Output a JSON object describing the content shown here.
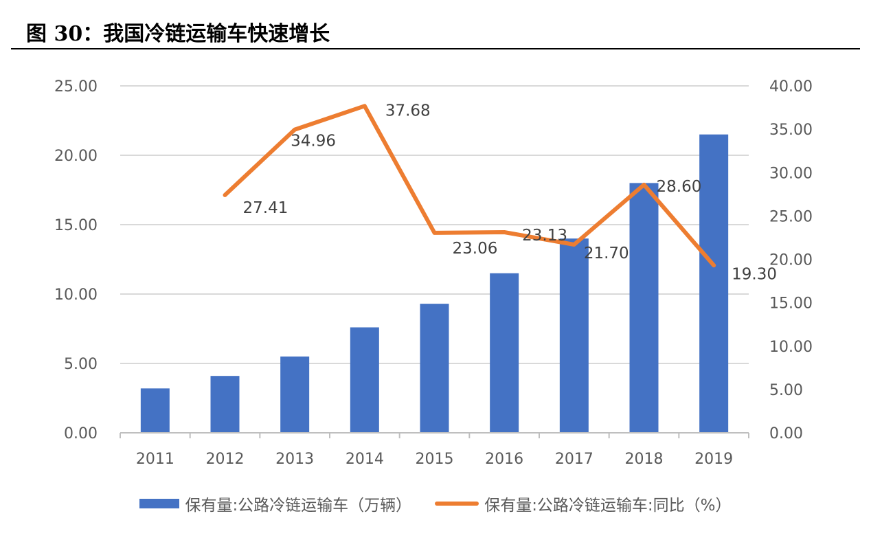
{
  "figure": {
    "title": "图 30：我国冷链运输车快速增长"
  },
  "chart_data": {
    "type": "bar",
    "categories": [
      "2011",
      "2012",
      "2013",
      "2014",
      "2015",
      "2016",
      "2017",
      "2018",
      "2019"
    ],
    "series": [
      {
        "name": "保有量:公路冷链运输车（万辆）",
        "type": "bar",
        "axis": "left",
        "color": "#4472C4",
        "values": [
          3.2,
          4.1,
          5.5,
          7.6,
          9.3,
          11.5,
          14.0,
          18.0,
          21.5
        ]
      },
      {
        "name": "保有量:公路冷链运输车:同比（%）",
        "type": "line",
        "axis": "right",
        "color": "#ED7D31",
        "values": [
          null,
          27.41,
          34.96,
          37.68,
          23.06,
          23.13,
          21.7,
          28.6,
          19.3
        ],
        "labels": [
          "",
          "27.41",
          "34.96",
          "37.68",
          "23.06",
          "23.13",
          "21.70",
          "28.60",
          "19.30"
        ]
      }
    ],
    "y_left": {
      "ylim": [
        0,
        25
      ],
      "ticks": [
        "0.00",
        "5.00",
        "10.00",
        "15.00",
        "20.00",
        "25.00"
      ]
    },
    "y_right": {
      "ylim": [
        0,
        40
      ],
      "ticks": [
        "0.00",
        "5.00",
        "10.00",
        "15.00",
        "20.00",
        "25.00",
        "30.00",
        "35.00",
        "40.00"
      ]
    },
    "grid": true,
    "legend_position": "bottom"
  }
}
